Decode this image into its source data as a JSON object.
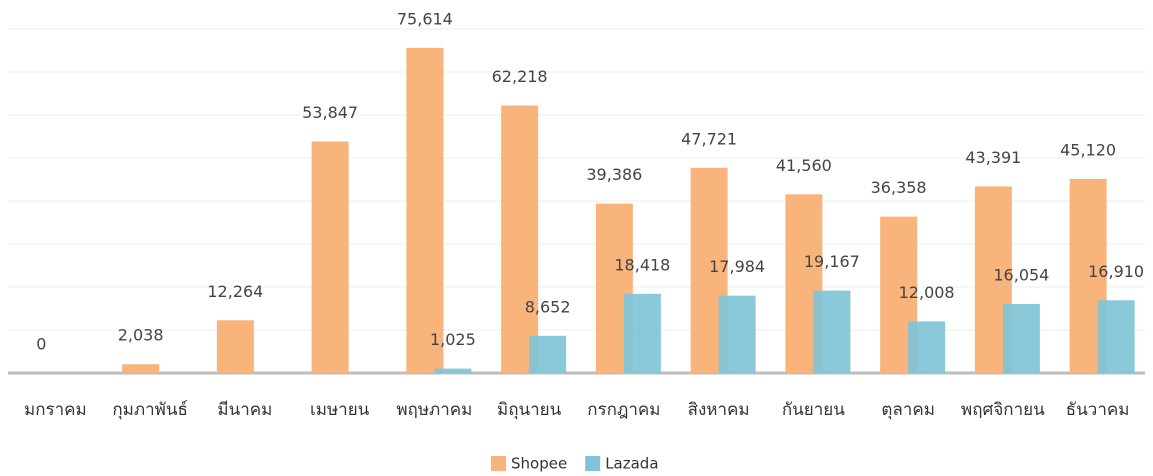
{
  "chart_data": {
    "type": "bar",
    "categories": [
      "มกราคม",
      "กุมภาพันธ์",
      "มีนาคม",
      "เมษายน",
      "พฤษภาคม",
      "มิถุนายน",
      "กรกฎาคม",
      "สิงหาคม",
      "กันยายน",
      "ตุลาคม",
      "พฤศจิกายน",
      "ธันวาคม"
    ],
    "series": [
      {
        "name": "Shopee",
        "color": "#f9b47c",
        "values": [
          0,
          2038,
          12264,
          53847,
          75614,
          62218,
          39386,
          47721,
          41560,
          36358,
          43391,
          45120
        ],
        "value_labels": [
          "0",
          "2,038",
          "12,264",
          "53,847",
          "75,614",
          "62,218",
          "39,386",
          "47,721",
          "41,560",
          "36,358",
          "43,391",
          "45,120"
        ]
      },
      {
        "name": "Lazada",
        "color": "#7fc4d6",
        "values": [
          null,
          null,
          null,
          null,
          1025,
          8652,
          18418,
          17984,
          19167,
          12008,
          16054,
          16910
        ],
        "value_labels": [
          null,
          null,
          null,
          null,
          "1,025",
          "8,652",
          "18,418",
          "17,984",
          "19,167",
          "12,008",
          "16,054",
          "16,910"
        ]
      }
    ],
    "ylim": [
      0,
      80000
    ],
    "yticks": [
      0,
      10000,
      20000,
      30000,
      40000,
      50000,
      60000,
      70000,
      80000
    ],
    "grid": true,
    "legend": "bottom"
  }
}
